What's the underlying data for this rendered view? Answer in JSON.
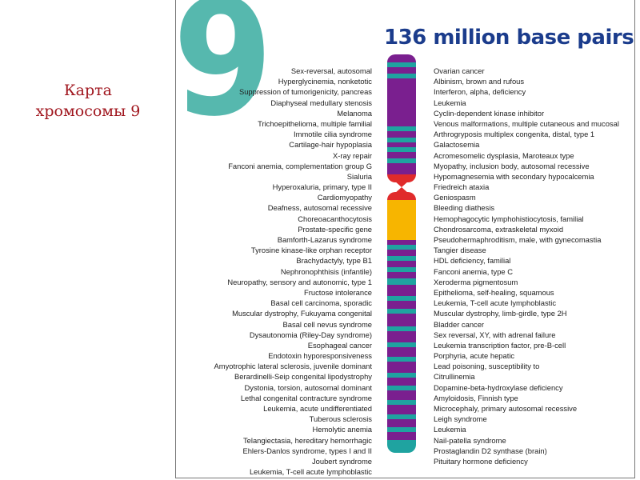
{
  "slide": {
    "title_line1": "Карта",
    "title_line2": "хромосомы 9"
  },
  "figure": {
    "big_number": "9",
    "base_pairs_label": "136 million base pairs"
  },
  "colors": {
    "title": "#a0161e",
    "big_number": "#56b8ae",
    "base_pairs_label": "#1b3c8c",
    "band_dark": "#7a1f8f",
    "band_teal": "#1fa3a0",
    "centromere": "#e02b2b",
    "heterochromatin": "#f7b500"
  },
  "left_disorders": [
    "Sex-reversal, autosomal",
    "Hyperglycinemia, nonketotic",
    "Suppression of tumorigenicity, pancreas",
    "Diaphyseal medullary stenosis",
    "Melanoma",
    "Trichoepithelioma, multiple familial",
    "Immotile cilia syndrome",
    "Cartilage-hair hypoplasia",
    "X-ray repair",
    "Fanconi anemia, complementation group G",
    "Sialuria",
    "Hyperoxaluria, primary, type II",
    "Cardiomyopathy",
    "Deafness, autosomal recessive",
    "Choreoacanthocytosis",
    "Prostate-specific gene",
    "Bamforth-Lazarus syndrome",
    "Tyrosine kinase-like orphan receptor",
    "Brachydactyly, type B1",
    "Nephronophthisis (infantile)",
    "Neuropathy, sensory and autonomic, type 1",
    "Fructose intolerance",
    "Basal cell carcinoma, sporadic",
    "Muscular dystrophy, Fukuyama congenital",
    "Basal cell nevus syndrome",
    "Dysautonomia (Riley-Day syndrome)",
    "Esophageal cancer",
    "Endotoxin hyporesponsiveness",
    "Amyotrophic lateral sclerosis, juvenile dominant",
    "Berardinelli-Seip congenital lipodystrophy",
    "Dystonia, torsion, autosomal dominant",
    "Lethal congenital contracture syndrome",
    "Leukemia, acute undifferentiated",
    "Tuberous sclerosis",
    "Hemolytic anemia",
    "Telangiectasia, hereditary hemorrhagic",
    "Ehlers-Danlos syndrome, types I and II",
    "Joubert syndrome",
    "Leukemia, T-cell acute lymphoblastic"
  ],
  "right_disorders": [
    "Ovarian cancer",
    "Albinism, brown and rufous",
    "Interferon, alpha, deficiency",
    "Leukemia",
    "Cyclin-dependent kinase inhibitor",
    "Venous malformations, multiple cutaneous and mucosal",
    "Arthrogryposis multiplex congenita, distal, type 1",
    "Galactosemia",
    "Acromesomelic dysplasia, Maroteaux type",
    "Myopathy, inclusion body, autosomal recessive",
    "Hypomagnesemia with secondary hypocalcemia",
    "Friedreich ataxia",
    "Geniospasm",
    "Bleeding diathesis",
    "Hemophagocytic lymphohistiocytosis, familial",
    "Chondrosarcoma, extraskeletal myxoid",
    "Pseudohermaphroditism, male, with gynecomastia",
    "Tangier disease",
    "HDL deficiency, familial",
    "Fanconi anemia, type C",
    "Xeroderma pigmentosum",
    "Epithelioma, self-healing, squamous",
    "Leukemia, T-cell acute lymphoblastic",
    "Muscular dystrophy, limb-girdle, type 2H",
    "Bladder cancer",
    "Sex reversal, XY, with adrenal failure",
    "Leukemia transcription factor, pre-B-cell",
    "Porphyria, acute hepatic",
    "Lead poisoning, susceptibility to",
    "Citrullinemia",
    "Dopamine-beta-hydroxylase deficiency",
    "Amyloidosis, Finnish type",
    "Microcephaly, primary autosomal recessive",
    "Leigh syndrome",
    "Leukemia",
    "Nail-patella syndrome",
    "Prostaglandin D2 synthase (brain)",
    "Pituitary hormone deficiency"
  ]
}
